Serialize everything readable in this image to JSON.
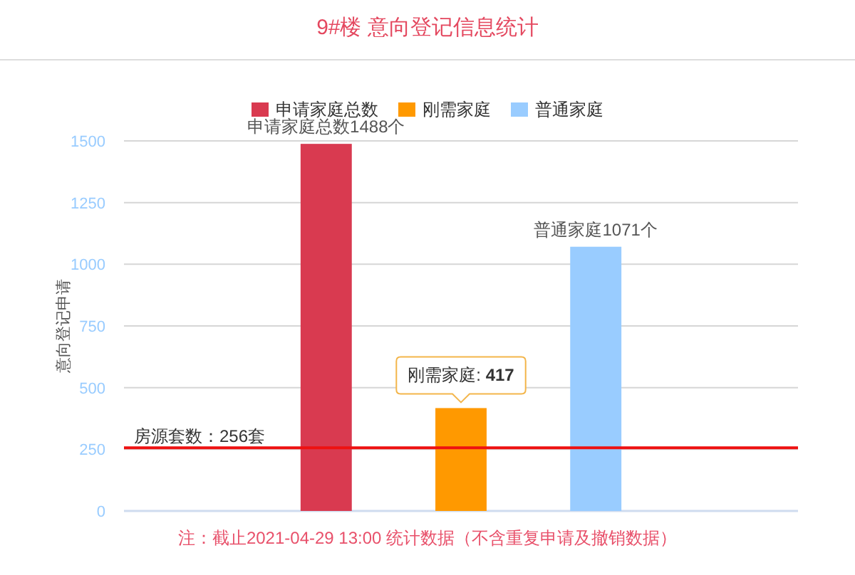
{
  "chart_data": {
    "type": "bar",
    "title": "9#楼 意向登记信息统计",
    "ylabel": "意向登记申请",
    "categories": [
      null
    ],
    "series": [
      {
        "name": "申请家庭总数",
        "color": "#d93a50",
        "values": [
          1488
        ],
        "value_labels": [
          "申请家庭总数1488个"
        ]
      },
      {
        "name": "刚需家庭",
        "color": "#ff9900",
        "values": [
          417
        ],
        "value_labels": [
          null
        ]
      },
      {
        "name": "普通家庭",
        "color": "#99ccff",
        "values": [
          1071
        ],
        "value_labels": [
          "普通家庭1071个"
        ]
      }
    ],
    "ylim": [
      0,
      1500
    ],
    "yticks": [
      0,
      250,
      500,
      750,
      1000,
      1250,
      1500
    ],
    "grid": "y",
    "legend": "top",
    "ref_lines": [
      {
        "axis": "y",
        "value": 256,
        "label": "房源套数：256套",
        "color": "#ee1111"
      }
    ],
    "annotations": [
      {
        "text": "刚需家庭: 417",
        "y": 417
      },
      "注：截止2021-04-29 13:00 统计数据（不含重复申请及撤销数据）"
    ]
  }
}
